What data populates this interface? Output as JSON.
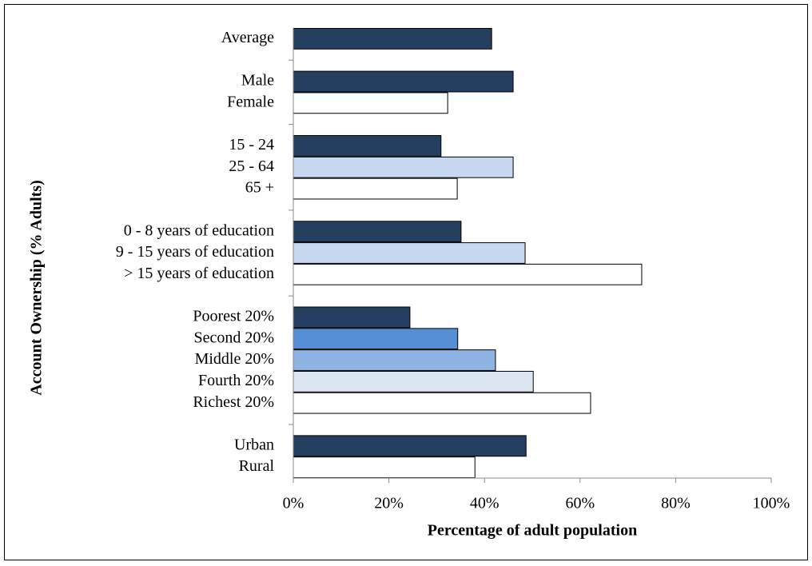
{
  "chart_data": {
    "type": "barh",
    "xlabel": "Percentage of adult population",
    "ylabel": "Account Ownership (% Adults)",
    "categories": [
      "Average",
      null,
      "Male",
      "Female",
      null,
      "15 - 24",
      "25 - 64",
      "65 +",
      null,
      "0 - 8 years of education",
      "9 - 15 years of education",
      "> 15 years of education",
      null,
      "Poorest 20%",
      "Second 20%",
      "Middle 20%",
      "Fourth 20%",
      "Richest 20%",
      null,
      "Urban",
      "Rural"
    ],
    "values": [
      41.5,
      null,
      46,
      32.3,
      null,
      30.9,
      46,
      34.3,
      null,
      35.1,
      48.5,
      72.9,
      null,
      24.4,
      34.4,
      42.3,
      50.2,
      62.2,
      null,
      48.7,
      38
    ],
    "colors": [
      "#243f60",
      null,
      "#243f60",
      "#ffffff",
      null,
      "#243f60",
      "#c6d9f1",
      "#ffffff",
      null,
      "#243f60",
      "#c6d9f1",
      "#ffffff",
      null,
      "#243f60",
      "#558ed5",
      "#8eb4e3",
      "#dce6f2",
      "#ffffff",
      null,
      "#243f60",
      "#ffffff"
    ],
    "xlim": [
      0,
      100
    ],
    "xticks": [
      {
        "value": 0,
        "label": "0%"
      },
      {
        "value": 20,
        "label": "20%"
      },
      {
        "value": 40,
        "label": "40%"
      },
      {
        "value": 60,
        "label": "60%"
      },
      {
        "value": 80,
        "label": "80%"
      },
      {
        "value": 100,
        "label": "100%"
      }
    ]
  }
}
